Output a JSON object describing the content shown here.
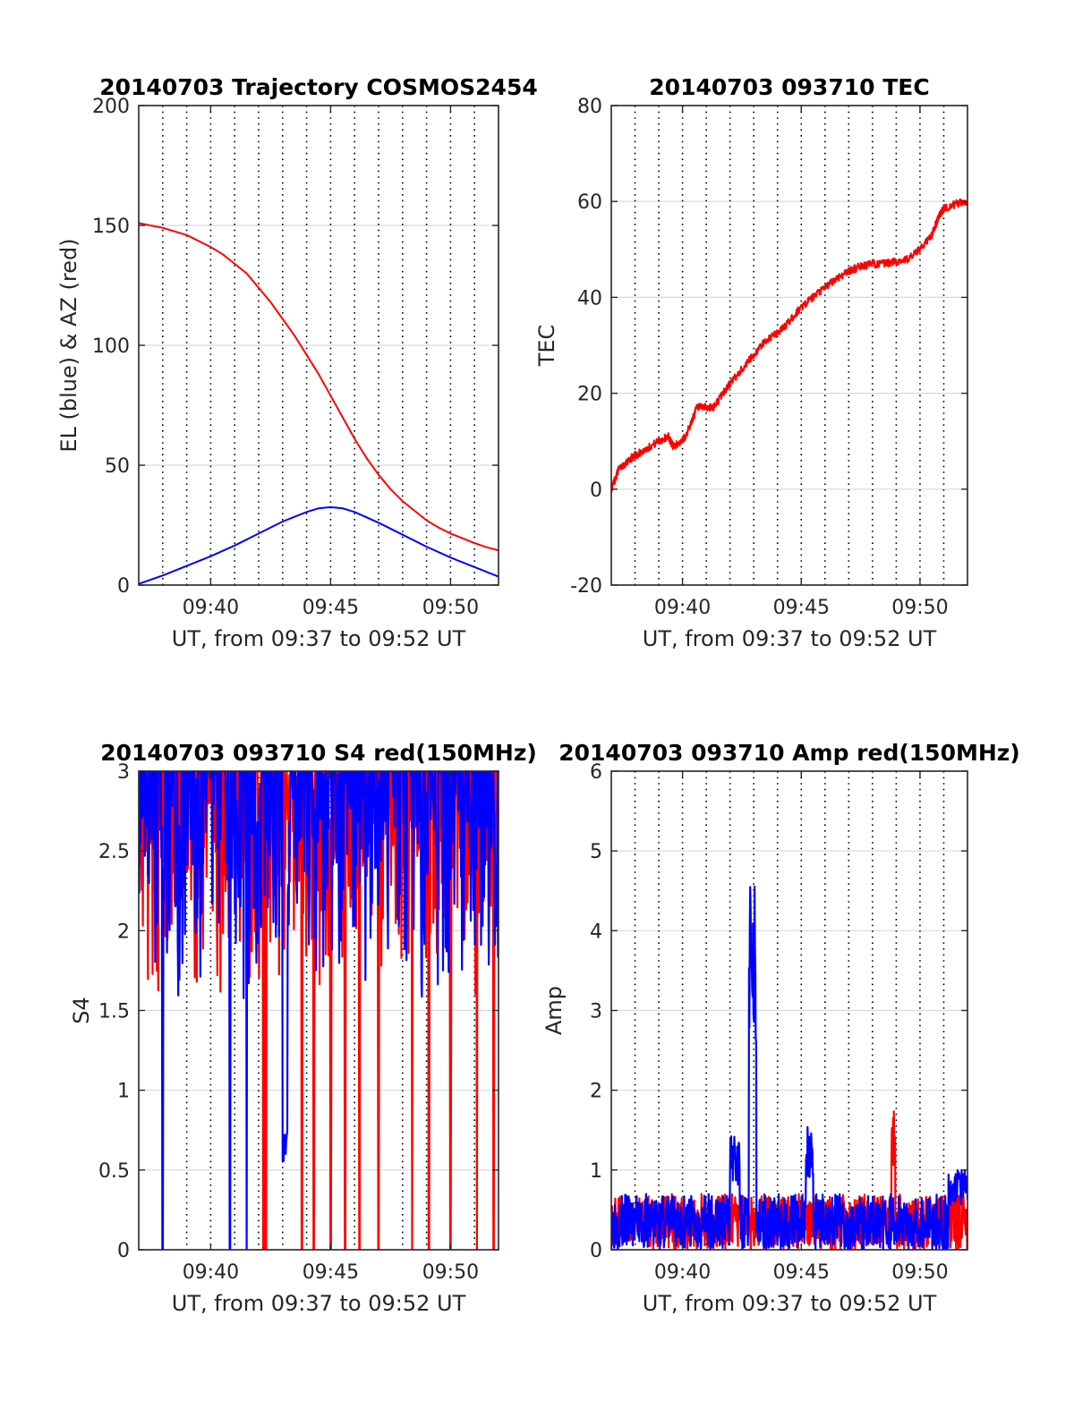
{
  "figure": {
    "background": "#ffffff"
  },
  "colors": {
    "el": "#0000ff",
    "az": "#ff0000",
    "red": "#ff0000",
    "blue": "#0000ff",
    "grid": "#d9d9d9",
    "axis": "#262626"
  },
  "chart_data": [
    {
      "id": "trajectory",
      "type": "line",
      "title": "20140703 Trajectory COSMOS2454",
      "xlabel": "UT, from 09:37 to 09:52 UT",
      "ylabel": "EL (blue) & AZ (red)",
      "xlim": [
        37,
        52
      ],
      "ylim": [
        0,
        200
      ],
      "xticks": [
        40,
        45,
        50
      ],
      "xtick_labels": [
        "09:40",
        "09:45",
        "09:50"
      ],
      "yticks": [
        0,
        50,
        100,
        150,
        200
      ],
      "ytick_labels": [
        "0",
        "50",
        "100",
        "150",
        "200"
      ],
      "vertical_dotted_lines": [
        38,
        39,
        40,
        41,
        42,
        43,
        44,
        45,
        46,
        47,
        48,
        49,
        50,
        51
      ],
      "grid": "horizontal",
      "series": [
        {
          "key": "az",
          "color": "#ff0000",
          "x": [
            37,
            38,
            39,
            40,
            40.5,
            41,
            41.5,
            42,
            42.5,
            43,
            43.5,
            44,
            44.5,
            45,
            45.5,
            46,
            46.5,
            47,
            47.5,
            48,
            48.5,
            49,
            49.5,
            50,
            50.5,
            51,
            51.5,
            52
          ],
          "y": [
            151,
            149,
            146,
            141,
            138,
            134,
            130,
            124,
            118,
            111,
            104,
            96,
            88,
            79,
            70,
            61,
            53,
            46,
            40,
            35,
            31,
            27,
            24,
            21.5,
            19.5,
            17.5,
            15.8,
            14.5
          ]
        },
        {
          "key": "el",
          "color": "#0000ff",
          "x": [
            37,
            38,
            39,
            40,
            41,
            42,
            43,
            44,
            44.5,
            45,
            45.5,
            46,
            47,
            48,
            49,
            50,
            51,
            52
          ],
          "y": [
            0.5,
            4,
            8,
            12,
            16.5,
            21.5,
            26.5,
            30.5,
            32,
            32.5,
            32,
            30.5,
            26,
            21,
            16,
            11.5,
            7.5,
            3.5
          ]
        }
      ]
    },
    {
      "id": "tec",
      "type": "line",
      "title": "20140703 093710 TEC",
      "xlabel": "UT, from 09:37 to 09:52 UT",
      "ylabel": "TEC",
      "xlim": [
        37,
        52
      ],
      "ylim": [
        -20,
        80
      ],
      "xticks": [
        40,
        45,
        50
      ],
      "xtick_labels": [
        "09:40",
        "09:45",
        "09:50"
      ],
      "yticks": [
        -20,
        0,
        20,
        40,
        60,
        80
      ],
      "ytick_labels": [
        "-20",
        "0",
        "20",
        "40",
        "60",
        "80"
      ],
      "vertical_dotted_lines": [
        38,
        39,
        40,
        41,
        42,
        43,
        44,
        45,
        46,
        47,
        48,
        49,
        50,
        51
      ],
      "grid": "horizontal",
      "noise": 0.8,
      "series": [
        {
          "key": "tec",
          "color": "#ff0000",
          "x": [
            37,
            37.3,
            37.7,
            38,
            38.5,
            39,
            39.4,
            39.6,
            40,
            40.3,
            40.6,
            41,
            41.3,
            41.7,
            42,
            42.5,
            43,
            43.5,
            44,
            44.5,
            45,
            45.5,
            46,
            46.5,
            47,
            47.5,
            48,
            48.5,
            49,
            49.5,
            50,
            50.5,
            50.8,
            51,
            51.5,
            52
          ],
          "y": [
            0,
            4,
            6,
            7,
            8.5,
            10,
            11,
            9,
            10,
            13,
            17,
            17,
            17,
            20,
            22,
            25,
            28,
            31,
            32.5,
            35,
            38,
            40,
            42,
            44,
            45.5,
            46.5,
            47,
            47,
            47.5,
            48,
            50,
            53,
            57,
            58.5,
            59.5,
            60
          ]
        }
      ]
    },
    {
      "id": "s4",
      "type": "line",
      "title": "20140703 093710 S4 red(150MHz)",
      "xlabel": "UT, from 09:37 to 09:52 UT",
      "ylabel": "S4",
      "xlim": [
        37,
        52
      ],
      "ylim": [
        0,
        3
      ],
      "xticks": [
        40,
        45,
        50
      ],
      "xtick_labels": [
        "09:40",
        "09:45",
        "09:50"
      ],
      "yticks": [
        0,
        0.5,
        1,
        1.5,
        2,
        2.5,
        3
      ],
      "ytick_labels": [
        "0",
        "0.5",
        "1",
        "1.5",
        "2",
        "2.5",
        "3"
      ],
      "vertical_dotted_lines": [
        38,
        39,
        40,
        41,
        42,
        43,
        44,
        45,
        46,
        47,
        48,
        49,
        50,
        51
      ],
      "grid": "horizontal",
      "series": [
        {
          "key": "s4_red",
          "color": "#ff0000",
          "samples": 700,
          "seed": 11,
          "low": 1.6,
          "high": 3,
          "dips": [
            42.2,
            42.3,
            43.8,
            44.3,
            45.0,
            45.6,
            46.2,
            47.0,
            48.4,
            49.1,
            50.0,
            51.1,
            51.8
          ],
          "dip_to": 0
        },
        {
          "key": "s4_blue",
          "color": "#0000ff",
          "samples": 700,
          "seed": 7,
          "low": 1.55,
          "high": 3,
          "dips": [
            38.0,
            40.8,
            41.5
          ],
          "dip_to": 0,
          "trough": [
            43.0,
            43.2,
            0.55
          ]
        }
      ]
    },
    {
      "id": "amp",
      "type": "line",
      "title": "20140703 093710 Amp red(150MHz)",
      "xlabel": "UT, from 09:37 to 09:52 UT",
      "ylabel": "Amp",
      "xlim": [
        37,
        52
      ],
      "ylim": [
        0,
        6
      ],
      "xticks": [
        40,
        45,
        50
      ],
      "xtick_labels": [
        "09:40",
        "09:45",
        "09:50"
      ],
      "yticks": [
        0,
        1,
        2,
        3,
        4,
        5,
        6
      ],
      "ytick_labels": [
        "0",
        "1",
        "2",
        "3",
        "4",
        "5",
        "6"
      ],
      "vertical_dotted_lines": [
        38,
        39,
        40,
        41,
        42,
        43,
        44,
        45,
        46,
        47,
        48,
        49,
        50,
        51
      ],
      "grid": "horizontal",
      "series": [
        {
          "key": "amp_red",
          "color": "#ff0000",
          "samples": 900,
          "seed": 5,
          "base": 0.35,
          "spread": 0.35,
          "bursts": [
            [
              48.8,
              48.95,
              1.85
            ]
          ]
        },
        {
          "key": "amp_blue",
          "color": "#0000ff",
          "samples": 900,
          "seed": 3,
          "base": 0.35,
          "spread": 0.35,
          "bursts": [
            [
              42.0,
              42.4,
              1.45
            ],
            [
              42.8,
              43.1,
              4.6
            ],
            [
              45.2,
              45.5,
              1.55
            ],
            [
              51.2,
              52.0,
              1.0
            ]
          ]
        }
      ]
    }
  ]
}
